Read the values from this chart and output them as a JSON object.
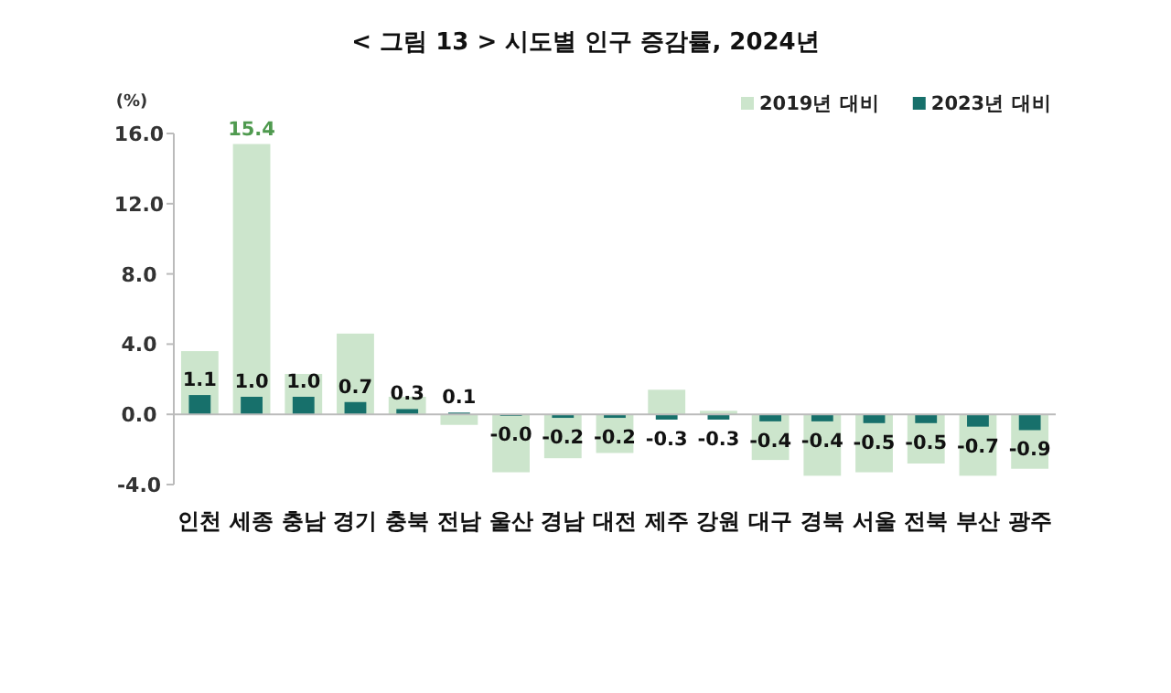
{
  "chart_data": {
    "type": "bar",
    "title": "< 그림 13 > 시도별 인구 증감률, 2024년",
    "ylabel": "(%)",
    "categories": [
      "인천",
      "세종",
      "충남",
      "경기",
      "충북",
      "전남",
      "울산",
      "경남",
      "대전",
      "제주",
      "강원",
      "대구",
      "경북",
      "서울",
      "전북",
      "부산",
      "광주"
    ],
    "series": [
      {
        "name": "2019년 대비",
        "color": "#cce5cc",
        "values": [
          3.6,
          15.4,
          2.3,
          4.6,
          1.0,
          -0.6,
          -3.3,
          -2.5,
          -2.2,
          1.4,
          0.2,
          -2.6,
          -3.5,
          -3.3,
          -2.8,
          -3.5,
          -3.1
        ],
        "value_labels": [
          null,
          "15.4",
          null,
          null,
          null,
          null,
          null,
          null,
          null,
          null,
          null,
          null,
          null,
          null,
          null,
          null,
          null
        ]
      },
      {
        "name": "2023년 대비",
        "color": "#17706b",
        "values": [
          1.1,
          1.0,
          1.0,
          0.7,
          0.3,
          0.1,
          -0.04,
          -0.2,
          -0.2,
          -0.3,
          -0.3,
          -0.4,
          -0.4,
          -0.5,
          -0.5,
          -0.7,
          -0.9
        ],
        "value_labels": [
          "1.1",
          "1.0",
          "1.0",
          "0.7",
          "0.3",
          "0.1",
          "-0.0",
          "-0.2",
          "-0.2",
          "-0.3",
          "-0.3",
          "-0.4",
          "-0.4",
          "-0.5",
          "-0.5",
          "-0.7",
          "-0.9"
        ]
      }
    ],
    "ylim": [
      -4,
      16
    ],
    "yticks": [
      {
        "value": -4,
        "label": "-4.0"
      },
      {
        "value": 0,
        "label": "0.0"
      },
      {
        "value": 4,
        "label": "4.0"
      },
      {
        "value": 8,
        "label": "8.0"
      },
      {
        "value": 12,
        "label": "12.0"
      },
      {
        "value": 16,
        "label": "16.0"
      }
    ],
    "legend": "top right"
  }
}
